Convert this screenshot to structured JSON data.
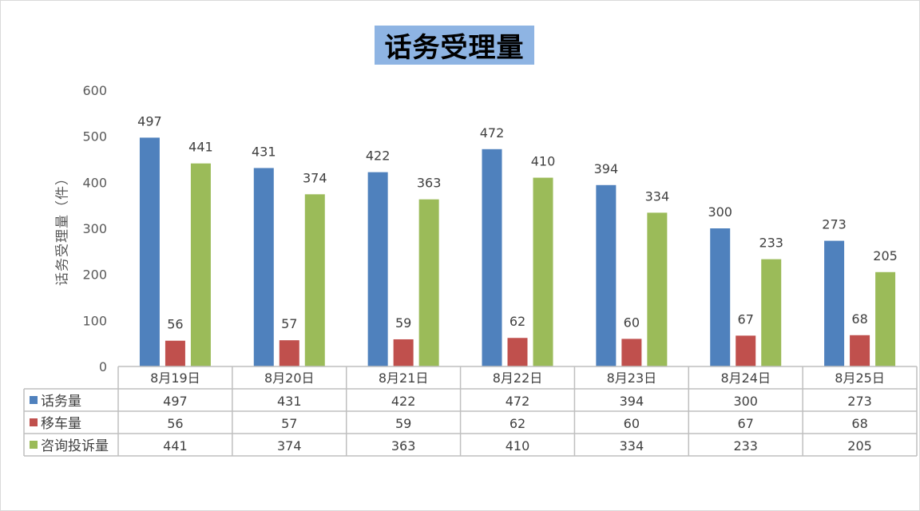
{
  "chart_data": {
    "type": "bar",
    "title": "话务受理量",
    "ylabel": "话务受理量（件）",
    "xlabel": "",
    "ylim": [
      0,
      600
    ],
    "yticks": [
      0,
      100,
      200,
      300,
      400,
      500,
      600
    ],
    "grid": false,
    "legend": "data-table",
    "categories": [
      "8月19日",
      "8月20日",
      "8月21日",
      "8月22日",
      "8月23日",
      "8月24日",
      "8月25日"
    ],
    "series": [
      {
        "name": "话务量",
        "color": "#4f81bd",
        "values": [
          497,
          431,
          422,
          472,
          394,
          300,
          273
        ]
      },
      {
        "name": "移车量",
        "color": "#c0504d",
        "values": [
          56,
          57,
          59,
          62,
          60,
          67,
          68
        ]
      },
      {
        "name": "咨询投诉量",
        "color": "#9bbb59",
        "values": [
          441,
          374,
          363,
          410,
          334,
          233,
          205
        ]
      }
    ]
  }
}
